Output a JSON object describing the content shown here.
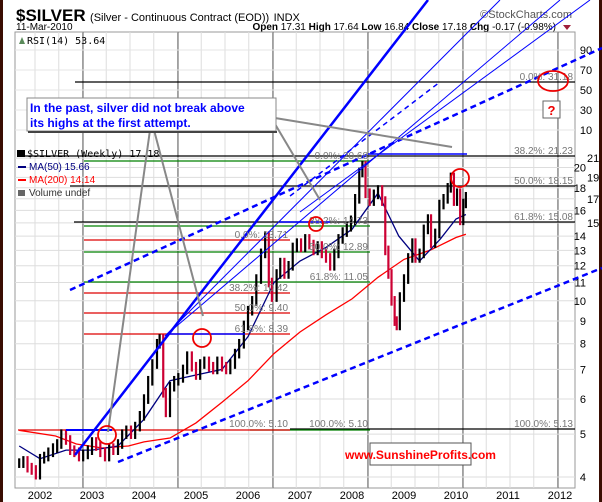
{
  "header": {
    "symbol": "$SILVER",
    "description": "(Silver - Continuous Contract (EOD))",
    "exchange": "INDX",
    "copyright": "©StockCharts.com",
    "date": "11-Mar-2010",
    "open_label": "Open",
    "open": "17.31",
    "high_label": "High",
    "high": "17.64",
    "low_label": "Low",
    "low": "16.84",
    "close_label": "Close",
    "close": "17.18",
    "chg_label": "Chg",
    "chg": "-0.17 (-0.98%)"
  },
  "legend": {
    "rsi": "RSI(14) 53.64",
    "price": "$SILVER (Weekly) 17.18",
    "ma50": "MA(50) 15.66",
    "ma200": "MA(200) 14.14",
    "volume": "Volume undef"
  },
  "annotations": {
    "callout": [
      "In the past, silver did not break above",
      "its highs at the first attempt."
    ],
    "question": "?",
    "website": "www.SunshineProfits.com",
    "fib_black": [
      "0.0%: 31.18",
      "38.2%: 21.23",
      "50.0%: 18.15",
      "61.8%: 15.08",
      "100.0%: 5.13"
    ],
    "fib_green": [
      "0.0%: 20.68",
      "38.2%: 14.73",
      "50.0%: 12.89",
      "61.8%: 11.05",
      "100.0%: 5.10"
    ],
    "fib_red": [
      "0.0%: 13.71",
      "38.2%: 10.42",
      "50.0%: 9.40",
      "61.8%: 8.39",
      "100.0%: 5.10"
    ]
  },
  "colors": {
    "up": "#000000",
    "down": "#cc0033",
    "ma50": "#000080",
    "ma200": "#ff0000",
    "trend": "#0000ff",
    "fib_green": "#008000",
    "fib_red": "#dd0000",
    "website": "#ff0000",
    "callout_text": "#0000ff"
  },
  "chart_data": {
    "type": "bar",
    "title": "$SILVER (Silver - Continuous Contract (EOD)) INDX",
    "y_scale": "log",
    "ylim": [
      3.8,
      23
    ],
    "xlim": [
      2001.5,
      2012.3
    ],
    "grid": true,
    "legend_placement": "top-left",
    "x_ticks": [
      "2002",
      "2003",
      "2004",
      "2005",
      "2006",
      "2007",
      "2008",
      "2009",
      "2010",
      "2011",
      "2012"
    ],
    "y_ticks": [
      4,
      5,
      6,
      7,
      8,
      9,
      10,
      11,
      12,
      13,
      14,
      15,
      16,
      17,
      18,
      19,
      20,
      21
    ],
    "rsi_ticks": [
      10,
      30,
      50,
      70,
      90
    ],
    "price": {
      "name": "$SILVER (Weekly)",
      "x": [
        2001.6,
        2001.68,
        2001.76,
        2001.84,
        2001.92,
        2002.0,
        2002.08,
        2002.16,
        2002.25,
        2002.33,
        2002.41,
        2002.5,
        2002.58,
        2002.66,
        2002.75,
        2002.83,
        2002.92,
        2003.0,
        2003.08,
        2003.16,
        2003.25,
        2003.33,
        2003.41,
        2003.5,
        2003.58,
        2003.66,
        2003.75,
        2003.83,
        2003.92,
        2004.0,
        2004.08,
        2004.16,
        2004.25,
        2004.3,
        2004.37,
        2004.42,
        2004.5,
        2004.58,
        2004.66,
        2004.75,
        2004.83,
        2004.92,
        2005.0,
        2005.08,
        2005.16,
        2005.25,
        2005.33,
        2005.41,
        2005.5,
        2005.58,
        2005.66,
        2005.75,
        2005.83,
        2005.92,
        2006.0,
        2006.08,
        2006.16,
        2006.25,
        2006.33,
        2006.4,
        2006.46,
        2006.55,
        2006.62,
        2006.7,
        2006.78,
        2006.86,
        2006.94,
        2007.02,
        2007.1,
        2007.18,
        2007.26,
        2007.34,
        2007.42,
        2007.5,
        2007.58,
        2007.66,
        2007.74,
        2007.82,
        2007.9,
        2007.98,
        2008.06,
        2008.14,
        2008.2,
        2008.26,
        2008.34,
        2008.42,
        2008.5,
        2008.58,
        2008.64,
        2008.7,
        2008.76,
        2008.82,
        2008.86,
        2008.92,
        2009.0,
        2009.08,
        2009.16,
        2009.22,
        2009.3,
        2009.38,
        2009.46,
        2009.52,
        2009.6,
        2009.68,
        2009.76,
        2009.84,
        2009.9,
        2009.96,
        2010.02,
        2010.08,
        2010.14,
        2010.19
      ],
      "close": [
        4.3,
        4.35,
        4.2,
        4.15,
        4.05,
        4.4,
        4.45,
        4.55,
        4.65,
        4.75,
        5.0,
        4.85,
        4.6,
        4.55,
        4.45,
        4.5,
        4.6,
        4.8,
        4.7,
        4.55,
        4.45,
        4.65,
        4.6,
        4.75,
        5.0,
        5.1,
        5.0,
        5.2,
        5.5,
        6.0,
        6.6,
        7.2,
        8.0,
        8.2,
        6.2,
        5.6,
        6.4,
        6.6,
        6.7,
        7.0,
        7.5,
        7.1,
        6.8,
        7.2,
        7.3,
        7.1,
        7.0,
        7.3,
        7.1,
        7.0,
        7.2,
        7.6,
        8.0,
        8.8,
        9.5,
        10.0,
        11.2,
        12.8,
        14.0,
        11.0,
        10.2,
        11.5,
        12.2,
        11.5,
        12.0,
        13.2,
        13.5,
        13.2,
        13.8,
        13.4,
        13.0,
        13.3,
        12.8,
        12.5,
        12.0,
        12.8,
        13.8,
        14.3,
        14.7,
        15.2,
        17.0,
        19.5,
        20.2,
        17.5,
        16.8,
        17.4,
        17.8,
        16.8,
        13.0,
        11.5,
        10.0,
        9.0,
        8.8,
        10.2,
        11.2,
        12.5,
        13.5,
        12.5,
        12.8,
        14.5,
        15.3,
        13.5,
        14.2,
        16.5,
        17.0,
        18.0,
        19.0,
        16.8,
        17.5,
        15.2,
        16.6,
        17.18
      ]
    },
    "ma50": {
      "name": "MA(50)",
      "x": [
        2001.6,
        2002.0,
        2002.5,
        2003.0,
        2003.5,
        2004.0,
        2004.5,
        2005.0,
        2005.5,
        2006.0,
        2006.5,
        2007.0,
        2007.5,
        2008.0,
        2008.5,
        2008.9,
        2009.3,
        2009.7,
        2010.0,
        2010.19
      ],
      "values": [
        4.7,
        4.4,
        4.6,
        4.6,
        4.7,
        5.4,
        6.6,
        6.8,
        7.0,
        8.3,
        11.0,
        12.3,
        13.2,
        14.5,
        17.5,
        14.0,
        12.3,
        13.8,
        15.3,
        15.66
      ]
    },
    "ma200": {
      "name": "MA(200)",
      "x": [
        2001.6,
        2002.3,
        2002.7,
        2003.2,
        2003.7,
        2004.0,
        2004.5,
        2005.0,
        2005.5,
        2006.0,
        2006.5,
        2007.0,
        2007.5,
        2008.0,
        2008.5,
        2009.0,
        2009.5,
        2010.0,
        2010.19
      ],
      "values": [
        5.1,
        4.95,
        4.75,
        4.65,
        4.7,
        4.8,
        4.9,
        5.3,
        5.9,
        6.6,
        7.6,
        8.5,
        9.3,
        10.1,
        11.3,
        12.4,
        13.0,
        13.9,
        14.14
      ]
    }
  }
}
